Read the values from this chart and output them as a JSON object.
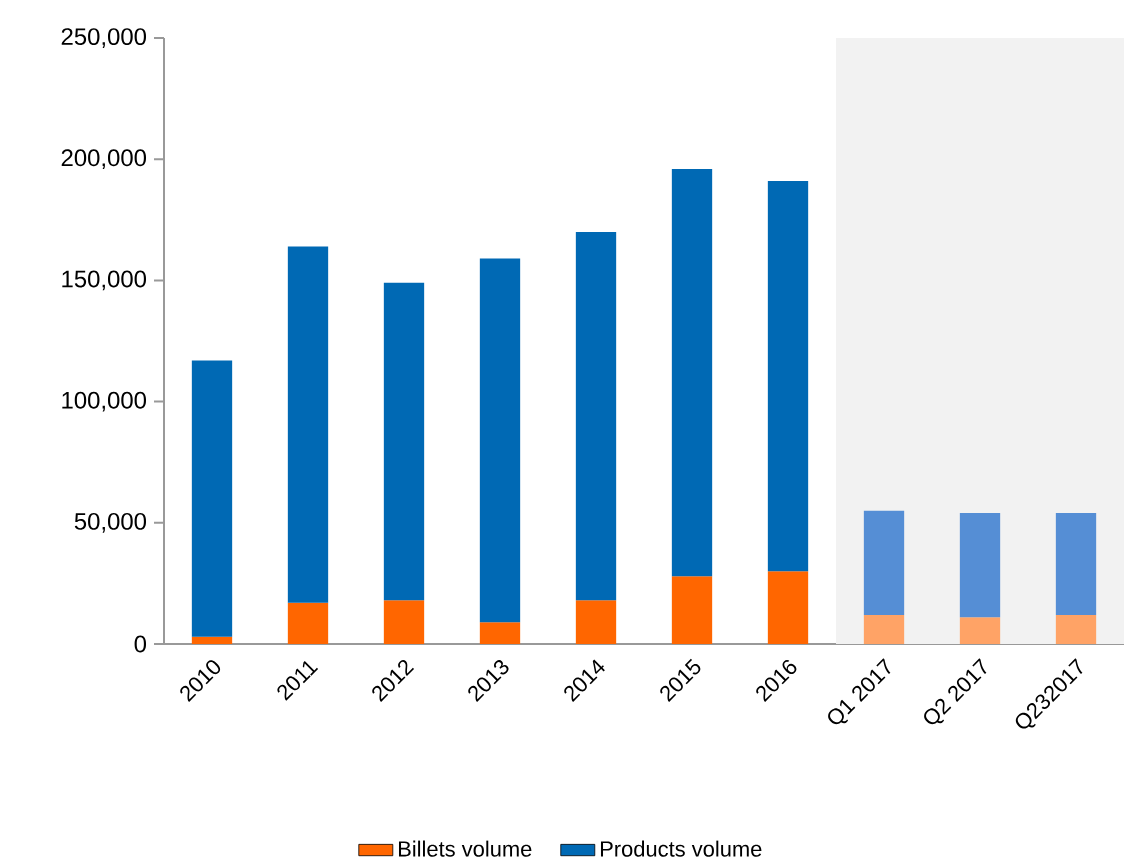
{
  "chart_data": {
    "type": "bar",
    "stacked": true,
    "categories": [
      "2010",
      "2011",
      "2012",
      "2013",
      "2014",
      "2015",
      "2016",
      "Q1 2017",
      "Q2 2017",
      "Q232017"
    ],
    "series": [
      {
        "name": "Billets volume",
        "color": "#ff6600",
        "colors": [
          "#ff6600",
          "#ff6600",
          "#ff6600",
          "#ff6600",
          "#ff6600",
          "#ff6600",
          "#ff6600",
          "#ffa366",
          "#ffa366",
          "#ffa366"
        ],
        "values": [
          3000,
          17000,
          18000,
          9000,
          18000,
          28000,
          30000,
          12000,
          11000,
          12000
        ]
      },
      {
        "name": "Products volume",
        "color": "#0069b4",
        "colors": [
          "#0069b4",
          "#0069b4",
          "#0069b4",
          "#0069b4",
          "#0069b4",
          "#0069b4",
          "#0069b4",
          "#558ed5",
          "#558ed5",
          "#558ed5"
        ],
        "values": [
          114000,
          147000,
          131000,
          150000,
          152000,
          168000,
          161000,
          43000,
          43000,
          42000
        ]
      }
    ],
    "ylim": [
      0,
      250000
    ],
    "yticks": [
      {
        "value": 0,
        "label": "0"
      },
      {
        "value": 50000,
        "label": "50,000"
      },
      {
        "value": 100000,
        "label": "100,000"
      },
      {
        "value": 150000,
        "label": "150,000"
      },
      {
        "value": 200000,
        "label": "200,000"
      },
      {
        "value": 250000,
        "label": "250,000"
      }
    ],
    "bands": [
      {
        "axis": "x",
        "from": "Q1 2017",
        "to": "Q232017",
        "color": "#f2f2f2"
      }
    ],
    "legend": "bottom",
    "grid": false
  }
}
